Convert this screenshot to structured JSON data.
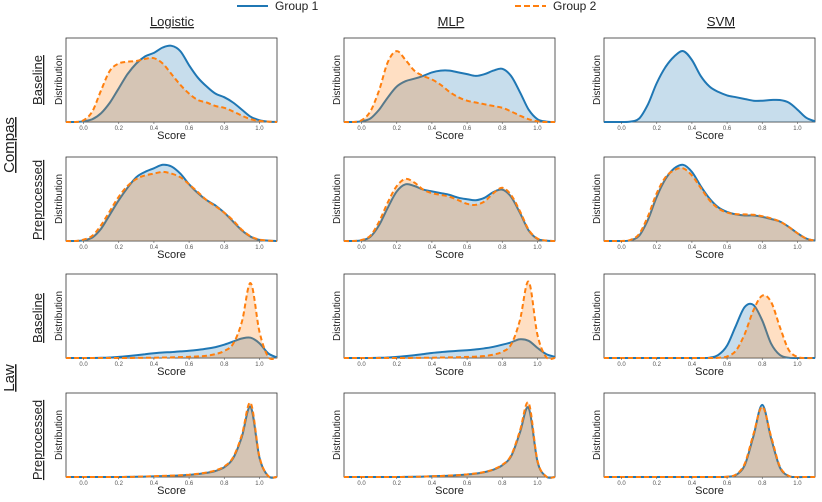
{
  "legend": {
    "group1": {
      "label": "Group 1",
      "color": "#1f77b4"
    },
    "group2": {
      "label": "Group 2",
      "color": "#ff7f0e"
    }
  },
  "columns": [
    "Logistic",
    "MLP",
    "SVM"
  ],
  "datasets": [
    {
      "name": "Compas",
      "rows": [
        "Baseline",
        "Preprocessed"
      ]
    },
    {
      "name": "Law",
      "rows": [
        "Baseline",
        "Preprocessed"
      ]
    }
  ],
  "axis": {
    "xlabel": "Score",
    "ylabel": "Distribution"
  },
  "chart_data": {
    "type": "area",
    "description": "KDE score distributions, 4 rows x 3 models",
    "xlim": [
      -0.1,
      1.1
    ],
    "xticks": [
      "0.0",
      "0.2",
      "0.4",
      "0.6",
      "0.8",
      "1.0"
    ],
    "x": [
      -0.1,
      -0.05,
      0.0,
      0.05,
      0.1,
      0.15,
      0.2,
      0.25,
      0.3,
      0.35,
      0.4,
      0.45,
      0.5,
      0.55,
      0.6,
      0.65,
      0.7,
      0.75,
      0.8,
      0.85,
      0.9,
      0.95,
      1.0,
      1.05,
      1.1
    ],
    "panels": [
      {
        "row": "Compas Baseline",
        "model": "Logistic",
        "ymax": 2.2,
        "group1": [
          0,
          0,
          0.02,
          0.08,
          0.25,
          0.55,
          0.95,
          1.35,
          1.65,
          1.85,
          1.95,
          2.1,
          2.15,
          2.0,
          1.6,
          1.25,
          1.0,
          0.8,
          0.7,
          0.55,
          0.35,
          0.15,
          0.05,
          0.01,
          0
        ],
        "group2": [
          0,
          0,
          0.05,
          0.3,
          0.9,
          1.45,
          1.65,
          1.7,
          1.72,
          1.78,
          1.8,
          1.65,
          1.35,
          1.05,
          0.8,
          0.62,
          0.55,
          0.45,
          0.4,
          0.3,
          0.18,
          0.08,
          0.03,
          0.01,
          0
        ]
      },
      {
        "row": "Compas Baseline",
        "model": "MLP",
        "ymax": 2.2,
        "group1": [
          0,
          0,
          0.02,
          0.1,
          0.35,
          0.7,
          1.0,
          1.15,
          1.22,
          1.3,
          1.4,
          1.45,
          1.45,
          1.4,
          1.35,
          1.3,
          1.35,
          1.45,
          1.5,
          1.3,
          0.85,
          0.35,
          0.08,
          0.01,
          0
        ],
        "group2": [
          0,
          0,
          0.05,
          0.3,
          0.9,
          1.7,
          2.0,
          1.75,
          1.45,
          1.3,
          1.2,
          1.05,
          0.85,
          0.7,
          0.6,
          0.55,
          0.5,
          0.45,
          0.4,
          0.3,
          0.18,
          0.08,
          0.02,
          0,
          0
        ]
      },
      {
        "row": "Compas Baseline",
        "model": "SVM",
        "ymax": 2.2,
        "group1": [
          0,
          0,
          0,
          0.01,
          0.1,
          0.5,
          1.1,
          1.55,
          1.85,
          2.0,
          1.75,
          1.3,
          1.0,
          0.85,
          0.75,
          0.7,
          0.65,
          0.6,
          0.6,
          0.62,
          0.62,
          0.55,
          0.35,
          0.12,
          0.02
        ]
      },
      {
        "row": "Compas Preprocessed",
        "model": "Logistic",
        "ymax": 2.2,
        "group1": [
          0,
          0,
          0.02,
          0.1,
          0.35,
          0.75,
          1.15,
          1.5,
          1.8,
          1.95,
          2.05,
          2.15,
          2.1,
          1.9,
          1.6,
          1.35,
          1.15,
          1.0,
          0.8,
          0.55,
          0.3,
          0.12,
          0.03,
          0.01,
          0
        ],
        "group2": [
          0,
          0,
          0.04,
          0.15,
          0.45,
          0.85,
          1.25,
          1.55,
          1.75,
          1.85,
          1.9,
          1.95,
          1.9,
          1.8,
          1.6,
          1.38,
          1.15,
          0.98,
          0.8,
          0.58,
          0.32,
          0.13,
          0.04,
          0.01,
          0
        ]
      },
      {
        "row": "Compas Preprocessed",
        "model": "MLP",
        "ymax": 2.2,
        "group1": [
          0,
          0,
          0.02,
          0.12,
          0.45,
          0.95,
          1.4,
          1.6,
          1.55,
          1.45,
          1.4,
          1.35,
          1.3,
          1.22,
          1.18,
          1.15,
          1.22,
          1.38,
          1.45,
          1.25,
          0.8,
          0.3,
          0.06,
          0.01,
          0
        ],
        "group2": [
          0,
          0,
          0.03,
          0.15,
          0.55,
          1.1,
          1.55,
          1.75,
          1.65,
          1.45,
          1.35,
          1.3,
          1.25,
          1.15,
          1.05,
          1.02,
          1.12,
          1.35,
          1.5,
          1.3,
          0.85,
          0.32,
          0.07,
          0.01,
          0
        ]
      },
      {
        "row": "Compas Preprocessed",
        "model": "SVM",
        "ymax": 2.2,
        "group1": [
          0,
          0,
          0,
          0.02,
          0.15,
          0.6,
          1.25,
          1.75,
          2.05,
          2.15,
          1.95,
          1.55,
          1.2,
          0.95,
          0.82,
          0.75,
          0.72,
          0.72,
          0.68,
          0.62,
          0.55,
          0.4,
          0.22,
          0.07,
          0.01
        ],
        "group2": [
          0,
          0,
          0,
          0.03,
          0.2,
          0.7,
          1.35,
          1.8,
          2.0,
          2.05,
          1.85,
          1.5,
          1.15,
          0.92,
          0.8,
          0.76,
          0.75,
          0.74,
          0.7,
          0.64,
          0.55,
          0.4,
          0.22,
          0.07,
          0.01
        ]
      },
      {
        "row": "Law Baseline",
        "model": "Logistic",
        "ymax": 5.0,
        "group1": [
          0,
          0,
          0,
          0,
          0.01,
          0.03,
          0.07,
          0.12,
          0.18,
          0.24,
          0.3,
          0.35,
          0.38,
          0.42,
          0.46,
          0.52,
          0.6,
          0.7,
          0.85,
          1.05,
          1.25,
          1.3,
          0.95,
          0.3,
          0.03
        ],
        "group2": [
          0,
          0,
          0,
          0,
          0,
          0,
          0,
          0,
          0.01,
          0.01,
          0.02,
          0.03,
          0.04,
          0.06,
          0.08,
          0.1,
          0.15,
          0.25,
          0.45,
          0.9,
          2.3,
          4.8,
          1.7,
          0.08,
          0
        ]
      },
      {
        "row": "Law Baseline",
        "model": "MLP",
        "ymax": 5.0,
        "group1": [
          0,
          0,
          0,
          0,
          0.01,
          0.03,
          0.07,
          0.12,
          0.18,
          0.25,
          0.32,
          0.38,
          0.42,
          0.46,
          0.5,
          0.55,
          0.62,
          0.72,
          0.85,
          1.0,
          1.2,
          1.1,
          0.65,
          0.25,
          0.08
        ],
        "group2": [
          0,
          0,
          0,
          0,
          0,
          0,
          0,
          0,
          0.01,
          0.01,
          0.02,
          0.03,
          0.04,
          0.05,
          0.07,
          0.09,
          0.13,
          0.22,
          0.4,
          0.85,
          2.4,
          4.9,
          1.5,
          0.06,
          0
        ]
      },
      {
        "row": "Law Baseline",
        "model": "SVM",
        "ymax": 7.5,
        "group1": [
          0,
          0,
          0,
          0,
          0,
          0,
          0,
          0,
          0,
          0,
          0,
          0,
          0.03,
          0.3,
          1.2,
          3.1,
          4.9,
          5.1,
          3.6,
          1.4,
          0.3,
          0.03,
          0,
          0,
          0
        ],
        "group2": [
          0,
          0,
          0,
          0,
          0,
          0,
          0,
          0,
          0,
          0,
          0,
          0,
          0,
          0.02,
          0.15,
          0.7,
          2.3,
          4.6,
          6.0,
          5.4,
          3.0,
          0.8,
          0.1,
          0,
          0
        ]
      },
      {
        "row": "Law Preprocessed",
        "model": "Logistic",
        "ymax": 8.0,
        "group1": [
          0,
          0,
          0,
          0,
          0,
          0,
          0,
          0.01,
          0.02,
          0.04,
          0.06,
          0.09,
          0.12,
          0.16,
          0.22,
          0.3,
          0.42,
          0.62,
          1.0,
          1.9,
          4.1,
          7.2,
          2.0,
          0.1,
          0
        ],
        "group2": [
          0,
          0,
          0,
          0,
          0,
          0,
          0,
          0.01,
          0.03,
          0.05,
          0.08,
          0.11,
          0.14,
          0.18,
          0.24,
          0.33,
          0.46,
          0.68,
          1.08,
          2.0,
          4.3,
          7.6,
          2.1,
          0.1,
          0
        ]
      },
      {
        "row": "Law Preprocessed",
        "model": "MLP",
        "ymax": 8.0,
        "group1": [
          0,
          0,
          0,
          0,
          0,
          0,
          0,
          0.01,
          0.02,
          0.04,
          0.07,
          0.1,
          0.14,
          0.19,
          0.26,
          0.35,
          0.5,
          0.75,
          1.2,
          2.1,
          4.5,
          7.1,
          1.6,
          0.05,
          0
        ],
        "group2": [
          0,
          0,
          0,
          0,
          0,
          0,
          0,
          0.01,
          0.02,
          0.04,
          0.07,
          0.1,
          0.15,
          0.2,
          0.27,
          0.37,
          0.52,
          0.78,
          1.25,
          2.2,
          4.7,
          7.6,
          1.7,
          0.05,
          0
        ]
      },
      {
        "row": "Law Preprocessed",
        "model": "SVM",
        "ymax": 8.0,
        "group1": [
          0,
          0,
          0,
          0,
          0,
          0,
          0,
          0,
          0,
          0,
          0,
          0,
          0,
          0,
          0.02,
          0.2,
          1.2,
          4.2,
          7.4,
          4.0,
          1.0,
          0.1,
          0,
          0,
          0
        ],
        "group2": [
          0,
          0,
          0,
          0,
          0,
          0,
          0,
          0,
          0,
          0,
          0,
          0,
          0,
          0,
          0.03,
          0.25,
          1.35,
          4.4,
          7.2,
          4.2,
          1.1,
          0.12,
          0,
          0,
          0
        ]
      }
    ]
  }
}
